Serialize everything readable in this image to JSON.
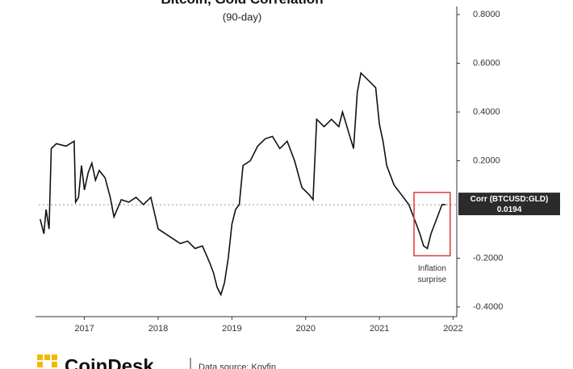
{
  "chart_data": {
    "type": "line",
    "title": "Bitcoin, Gold Correlation",
    "subtitle": "(90-day)",
    "xlim": [
      2016.38,
      2022.05
    ],
    "xticks": [
      2017,
      2018,
      2019,
      2020,
      2021,
      2022
    ],
    "ylim": [
      -0.42,
      0.82
    ],
    "yticks": [
      {
        "value": 0.8,
        "label": "0.8000"
      },
      {
        "value": 0.6,
        "label": "0.6000"
      },
      {
        "value": 0.4,
        "label": "0.4000"
      },
      {
        "value": 0.2,
        "label": "0.2000"
      },
      {
        "value": -0.2,
        "label": "-0.2000"
      },
      {
        "value": -0.4,
        "label": "-0.4000"
      }
    ],
    "series": [
      {
        "name": "Corr (BTCUSD:GLD)",
        "color": "#111111",
        "x": [
          2016.4,
          2016.45,
          2016.48,
          2016.52,
          2016.55,
          2016.62,
          2016.75,
          2016.86,
          2016.88,
          2016.92,
          2016.96,
          2017.0,
          2017.05,
          2017.1,
          2017.15,
          2017.2,
          2017.28,
          2017.35,
          2017.4,
          2017.5,
          2017.6,
          2017.7,
          2017.8,
          2017.9,
          2018.0,
          2018.1,
          2018.2,
          2018.3,
          2018.4,
          2018.5,
          2018.6,
          2018.7,
          2018.75,
          2018.8,
          2018.85,
          2018.9,
          2018.95,
          2019.0,
          2019.05,
          2019.1,
          2019.15,
          2019.25,
          2019.35,
          2019.45,
          2019.55,
          2019.65,
          2019.75,
          2019.85,
          2019.95,
          2020.05,
          2020.1,
          2020.15,
          2020.25,
          2020.35,
          2020.45,
          2020.5,
          2020.55,
          2020.6,
          2020.65,
          2020.7,
          2020.75,
          2020.85,
          2020.95,
          2021.0,
          2021.05,
          2021.1,
          2021.2,
          2021.3,
          2021.4,
          2021.45,
          2021.5,
          2021.55,
          2021.6,
          2021.65,
          2021.7,
          2021.75,
          2021.8,
          2021.85,
          2021.9
        ],
        "values": [
          -0.04,
          -0.1,
          0.0,
          -0.08,
          0.25,
          0.27,
          0.26,
          0.28,
          0.03,
          0.05,
          0.18,
          0.08,
          0.15,
          0.19,
          0.12,
          0.16,
          0.13,
          0.05,
          -0.03,
          0.04,
          0.03,
          0.05,
          0.02,
          0.05,
          -0.08,
          -0.1,
          -0.12,
          -0.14,
          -0.13,
          -0.16,
          -0.15,
          -0.22,
          -0.26,
          -0.32,
          -0.35,
          -0.3,
          -0.2,
          -0.06,
          0.0,
          0.02,
          0.18,
          0.2,
          0.26,
          0.29,
          0.3,
          0.25,
          0.28,
          0.2,
          0.09,
          0.06,
          0.04,
          0.37,
          0.34,
          0.37,
          0.34,
          0.4,
          0.35,
          0.3,
          0.25,
          0.48,
          0.56,
          0.53,
          0.5,
          0.35,
          0.28,
          0.18,
          0.1,
          0.06,
          0.02,
          -0.02,
          -0.06,
          -0.1,
          -0.15,
          -0.16,
          -0.1,
          -0.06,
          -0.02,
          0.02,
          0.02
        ]
      }
    ],
    "current_value": {
      "label": "Corr (BTCUSD:GLD)",
      "value": 0.0194
    },
    "highlight": {
      "x": [
        2021.47,
        2021.96
      ],
      "y": [
        -0.19,
        0.07
      ],
      "color": "#e03a3a",
      "label": [
        "Inflation",
        "surprise"
      ]
    },
    "footer": {
      "brand": "CoinDesk",
      "source": "Data source: Koyfin"
    }
  }
}
